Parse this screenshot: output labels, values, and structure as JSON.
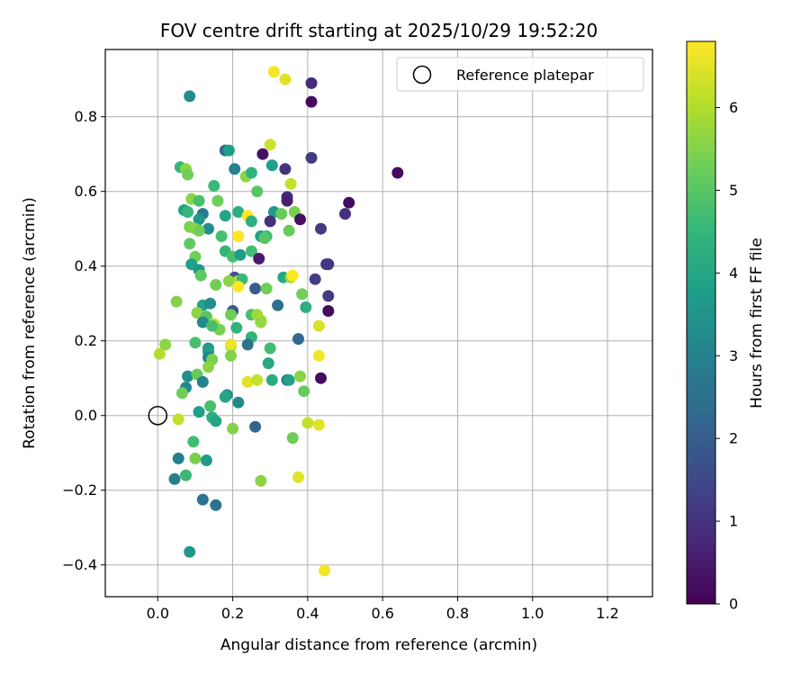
{
  "chart_data": {
    "type": "scatter",
    "title": "FOV centre drift starting at 2025/10/29 19:52:20",
    "xlabel": "Angular distance from reference (arcmin)",
    "ylabel": "Rotation from reference (arcmin)",
    "xlim": [
      -0.14,
      1.32
    ],
    "ylim": [
      -0.485,
      0.98
    ],
    "xticks": [
      0.0,
      0.2,
      0.4,
      0.6,
      0.8,
      1.0,
      1.2
    ],
    "xtick_labels": [
      "0.0",
      "0.2",
      "0.4",
      "0.6",
      "0.8",
      "1.0",
      "1.2"
    ],
    "yticks": [
      -0.4,
      -0.2,
      0.0,
      0.2,
      0.4,
      0.6,
      0.8
    ],
    "ytick_labels": [
      "−0.4",
      "−0.2",
      "0.0",
      "0.2",
      "0.4",
      "0.6",
      "0.8"
    ],
    "grid": true,
    "legend": {
      "position": "top-right",
      "label": "Reference platepar"
    },
    "reference_point": {
      "x": 0.0,
      "y": 0.0
    },
    "colorbar": {
      "label": "Hours from first FF file",
      "colormap": "viridis",
      "range": [
        0,
        6.8
      ],
      "ticks": [
        0,
        1,
        2,
        3,
        4,
        5,
        6
      ],
      "tick_labels": [
        "0",
        "1",
        "2",
        "3",
        "4",
        "5",
        "6"
      ]
    },
    "points": [
      {
        "x": 0.41,
        "y": 0.89,
        "h": 0.8
      },
      {
        "x": 0.41,
        "y": 0.84,
        "h": 0.2
      },
      {
        "x": 0.31,
        "y": 0.92,
        "h": 6.7
      },
      {
        "x": 0.34,
        "y": 0.9,
        "h": 6.5
      },
      {
        "x": 0.085,
        "y": 0.855,
        "h": 3.3
      },
      {
        "x": 0.64,
        "y": 0.65,
        "h": 0.2
      },
      {
        "x": 0.41,
        "y": 0.69,
        "h": 1.2
      },
      {
        "x": 0.34,
        "y": 0.66,
        "h": 1.0
      },
      {
        "x": 0.28,
        "y": 0.7,
        "h": 0.3
      },
      {
        "x": 0.3,
        "y": 0.725,
        "h": 6.3
      },
      {
        "x": 0.18,
        "y": 0.71,
        "h": 2.4
      },
      {
        "x": 0.19,
        "y": 0.71,
        "h": 3.8
      },
      {
        "x": 0.06,
        "y": 0.665,
        "h": 4.5
      },
      {
        "x": 0.075,
        "y": 0.66,
        "h": 5.6
      },
      {
        "x": 0.08,
        "y": 0.645,
        "h": 5.3
      },
      {
        "x": 0.205,
        "y": 0.66,
        "h": 3.0
      },
      {
        "x": 0.235,
        "y": 0.64,
        "h": 5.6
      },
      {
        "x": 0.25,
        "y": 0.65,
        "h": 4.4
      },
      {
        "x": 0.305,
        "y": 0.67,
        "h": 3.8
      },
      {
        "x": 0.355,
        "y": 0.62,
        "h": 6.2
      },
      {
        "x": 0.15,
        "y": 0.615,
        "h": 4.6
      },
      {
        "x": 0.265,
        "y": 0.6,
        "h": 5.0
      },
      {
        "x": 0.345,
        "y": 0.585,
        "h": 0.8
      },
      {
        "x": 0.345,
        "y": 0.575,
        "h": 0.6
      },
      {
        "x": 0.09,
        "y": 0.58,
        "h": 5.6
      },
      {
        "x": 0.11,
        "y": 0.575,
        "h": 4.8
      },
      {
        "x": 0.16,
        "y": 0.575,
        "h": 5.3
      },
      {
        "x": 0.07,
        "y": 0.55,
        "h": 3.9
      },
      {
        "x": 0.08,
        "y": 0.545,
        "h": 4.5
      },
      {
        "x": 0.215,
        "y": 0.545,
        "h": 4.2
      },
      {
        "x": 0.31,
        "y": 0.545,
        "h": 3.7
      },
      {
        "x": 0.33,
        "y": 0.54,
        "h": 5.2
      },
      {
        "x": 0.365,
        "y": 0.545,
        "h": 5.4
      },
      {
        "x": 0.38,
        "y": 0.525,
        "h": 0.3
      },
      {
        "x": 0.51,
        "y": 0.57,
        "h": 0.2
      },
      {
        "x": 0.5,
        "y": 0.54,
        "h": 0.9
      },
      {
        "x": 0.12,
        "y": 0.54,
        "h": 2.8
      },
      {
        "x": 0.11,
        "y": 0.525,
        "h": 3.6
      },
      {
        "x": 0.18,
        "y": 0.535,
        "h": 4.0
      },
      {
        "x": 0.24,
        "y": 0.535,
        "h": 6.8
      },
      {
        "x": 0.3,
        "y": 0.52,
        "h": 0.9
      },
      {
        "x": 0.25,
        "y": 0.52,
        "h": 4.3
      },
      {
        "x": 0.085,
        "y": 0.505,
        "h": 5.4
      },
      {
        "x": 0.1,
        "y": 0.5,
        "h": 5.6
      },
      {
        "x": 0.135,
        "y": 0.5,
        "h": 3.3
      },
      {
        "x": 0.11,
        "y": 0.495,
        "h": 5.3
      },
      {
        "x": 0.35,
        "y": 0.495,
        "h": 5.2
      },
      {
        "x": 0.435,
        "y": 0.5,
        "h": 1.2
      },
      {
        "x": 0.17,
        "y": 0.48,
        "h": 4.8
      },
      {
        "x": 0.215,
        "y": 0.48,
        "h": 6.8
      },
      {
        "x": 0.275,
        "y": 0.48,
        "h": 3.8
      },
      {
        "x": 0.29,
        "y": 0.48,
        "h": 4.6
      },
      {
        "x": 0.285,
        "y": 0.475,
        "h": 5.0
      },
      {
        "x": 0.085,
        "y": 0.46,
        "h": 5.1
      },
      {
        "x": 0.18,
        "y": 0.44,
        "h": 4.5
      },
      {
        "x": 0.25,
        "y": 0.44,
        "h": 4.7
      },
      {
        "x": 0.2,
        "y": 0.425,
        "h": 4.8
      },
      {
        "x": 0.22,
        "y": 0.43,
        "h": 3.7
      },
      {
        "x": 0.1,
        "y": 0.425,
        "h": 5.3
      },
      {
        "x": 0.27,
        "y": 0.42,
        "h": 0.5
      },
      {
        "x": 0.09,
        "y": 0.405,
        "h": 3.8
      },
      {
        "x": 0.11,
        "y": 0.39,
        "h": 3.6
      },
      {
        "x": 0.115,
        "y": 0.375,
        "h": 5.1
      },
      {
        "x": 0.205,
        "y": 0.37,
        "h": 1.7
      },
      {
        "x": 0.215,
        "y": 0.36,
        "h": 6.3
      },
      {
        "x": 0.225,
        "y": 0.365,
        "h": 4.6
      },
      {
        "x": 0.335,
        "y": 0.37,
        "h": 4.1
      },
      {
        "x": 0.355,
        "y": 0.37,
        "h": 5.8
      },
      {
        "x": 0.36,
        "y": 0.375,
        "h": 6.8
      },
      {
        "x": 0.42,
        "y": 0.365,
        "h": 1.2
      },
      {
        "x": 0.45,
        "y": 0.405,
        "h": 0.9
      },
      {
        "x": 0.455,
        "y": 0.405,
        "h": 1.1
      },
      {
        "x": 0.155,
        "y": 0.35,
        "h": 5.3
      },
      {
        "x": 0.19,
        "y": 0.36,
        "h": 5.6
      },
      {
        "x": 0.215,
        "y": 0.345,
        "h": 6.8
      },
      {
        "x": 0.26,
        "y": 0.34,
        "h": 2.0
      },
      {
        "x": 0.29,
        "y": 0.34,
        "h": 5.3
      },
      {
        "x": 0.385,
        "y": 0.325,
        "h": 5.3
      },
      {
        "x": 0.455,
        "y": 0.32,
        "h": 1.2
      },
      {
        "x": 0.05,
        "y": 0.305,
        "h": 5.5
      },
      {
        "x": 0.12,
        "y": 0.295,
        "h": 3.9
      },
      {
        "x": 0.14,
        "y": 0.3,
        "h": 3.3
      },
      {
        "x": 0.32,
        "y": 0.295,
        "h": 2.5
      },
      {
        "x": 0.395,
        "y": 0.29,
        "h": 4.3
      },
      {
        "x": 0.455,
        "y": 0.28,
        "h": 0.2
      },
      {
        "x": 0.2,
        "y": 0.28,
        "h": 1.9
      },
      {
        "x": 0.105,
        "y": 0.275,
        "h": 5.6
      },
      {
        "x": 0.13,
        "y": 0.265,
        "h": 5.0
      },
      {
        "x": 0.195,
        "y": 0.27,
        "h": 5.3
      },
      {
        "x": 0.25,
        "y": 0.27,
        "h": 4.8
      },
      {
        "x": 0.265,
        "y": 0.27,
        "h": 5.8
      },
      {
        "x": 0.275,
        "y": 0.255,
        "h": 6.0
      },
      {
        "x": 0.275,
        "y": 0.25,
        "h": 5.7
      },
      {
        "x": 0.12,
        "y": 0.25,
        "h": 3.2
      },
      {
        "x": 0.15,
        "y": 0.245,
        "h": 6.2
      },
      {
        "x": 0.165,
        "y": 0.23,
        "h": 5.4
      },
      {
        "x": 0.145,
        "y": 0.24,
        "h": 4.8
      },
      {
        "x": 0.21,
        "y": 0.235,
        "h": 4.4
      },
      {
        "x": 0.43,
        "y": 0.24,
        "h": 6.4
      },
      {
        "x": 0.25,
        "y": 0.21,
        "h": 4.4
      },
      {
        "x": 0.375,
        "y": 0.205,
        "h": 2.3
      },
      {
        "x": 0.1,
        "y": 0.195,
        "h": 4.8
      },
      {
        "x": 0.24,
        "y": 0.19,
        "h": 2.6
      },
      {
        "x": 0.195,
        "y": 0.185,
        "h": 5.9
      },
      {
        "x": 0.195,
        "y": 0.19,
        "h": 6.6
      },
      {
        "x": 0.02,
        "y": 0.19,
        "h": 5.6
      },
      {
        "x": 0.135,
        "y": 0.18,
        "h": 3.6
      },
      {
        "x": 0.135,
        "y": 0.17,
        "h": 3.8
      },
      {
        "x": 0.3,
        "y": 0.18,
        "h": 4.7
      },
      {
        "x": 0.005,
        "y": 0.165,
        "h": 6.0
      },
      {
        "x": 0.135,
        "y": 0.155,
        "h": 3.0
      },
      {
        "x": 0.145,
        "y": 0.15,
        "h": 5.4
      },
      {
        "x": 0.195,
        "y": 0.16,
        "h": 5.5
      },
      {
        "x": 0.43,
        "y": 0.16,
        "h": 6.7
      },
      {
        "x": 0.295,
        "y": 0.14,
        "h": 4.1
      },
      {
        "x": 0.135,
        "y": 0.13,
        "h": 5.6
      },
      {
        "x": 0.08,
        "y": 0.105,
        "h": 3.3
      },
      {
        "x": 0.105,
        "y": 0.11,
        "h": 5.2
      },
      {
        "x": 0.12,
        "y": 0.09,
        "h": 3.0
      },
      {
        "x": 0.24,
        "y": 0.09,
        "h": 6.5
      },
      {
        "x": 0.265,
        "y": 0.095,
        "h": 6.2
      },
      {
        "x": 0.305,
        "y": 0.095,
        "h": 4.2
      },
      {
        "x": 0.345,
        "y": 0.095,
        "h": 2.4
      },
      {
        "x": 0.35,
        "y": 0.095,
        "h": 3.9
      },
      {
        "x": 0.38,
        "y": 0.105,
        "h": 5.6
      },
      {
        "x": 0.435,
        "y": 0.1,
        "h": 0.2
      },
      {
        "x": 0.075,
        "y": 0.075,
        "h": 3.2
      },
      {
        "x": 0.065,
        "y": 0.06,
        "h": 5.3
      },
      {
        "x": 0.39,
        "y": 0.065,
        "h": 5.2
      },
      {
        "x": 0.185,
        "y": 0.055,
        "h": 3.4
      },
      {
        "x": 0.18,
        "y": 0.05,
        "h": 4.0
      },
      {
        "x": 0.215,
        "y": 0.035,
        "h": 3.2
      },
      {
        "x": 0.14,
        "y": 0.025,
        "h": 4.8
      },
      {
        "x": 0.11,
        "y": 0.01,
        "h": 3.8
      },
      {
        "x": 0.145,
        "y": -0.005,
        "h": 4.3
      },
      {
        "x": 0.055,
        "y": -0.01,
        "h": 6.2
      },
      {
        "x": 0.155,
        "y": -0.015,
        "h": 4.0
      },
      {
        "x": 0.4,
        "y": -0.02,
        "h": 6.2
      },
      {
        "x": 0.43,
        "y": -0.025,
        "h": 6.5
      },
      {
        "x": 0.26,
        "y": -0.03,
        "h": 2.2
      },
      {
        "x": 0.2,
        "y": -0.035,
        "h": 5.5
      },
      {
        "x": 0.36,
        "y": -0.06,
        "h": 5.3
      },
      {
        "x": 0.095,
        "y": -0.07,
        "h": 4.7
      },
      {
        "x": 0.055,
        "y": -0.115,
        "h": 3.0
      },
      {
        "x": 0.1,
        "y": -0.115,
        "h": 5.4
      },
      {
        "x": 0.13,
        "y": -0.12,
        "h": 3.7
      },
      {
        "x": 0.075,
        "y": -0.16,
        "h": 4.6
      },
      {
        "x": 0.045,
        "y": -0.17,
        "h": 3.0
      },
      {
        "x": 0.275,
        "y": -0.175,
        "h": 5.6
      },
      {
        "x": 0.375,
        "y": -0.165,
        "h": 6.5
      },
      {
        "x": 0.12,
        "y": -0.225,
        "h": 2.6
      },
      {
        "x": 0.155,
        "y": -0.24,
        "h": 2.6
      },
      {
        "x": 0.085,
        "y": -0.365,
        "h": 3.6
      },
      {
        "x": 0.445,
        "y": -0.415,
        "h": 6.7
      }
    ]
  }
}
